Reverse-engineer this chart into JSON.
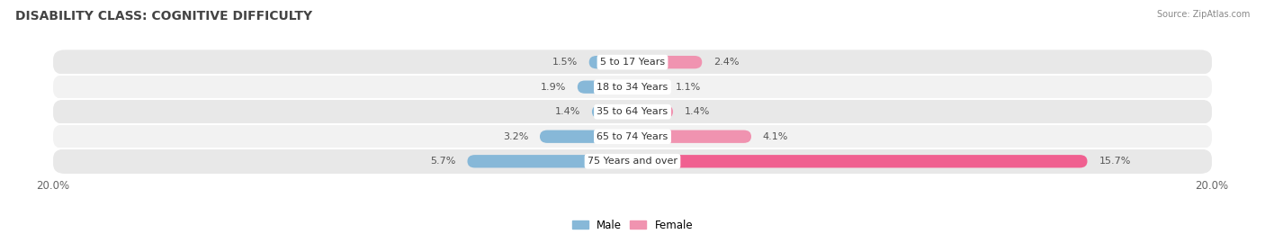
{
  "title": "DISABILITY CLASS: COGNITIVE DIFFICULTY",
  "source": "Source: ZipAtlas.com",
  "categories": [
    "5 to 17 Years",
    "18 to 34 Years",
    "35 to 64 Years",
    "65 to 74 Years",
    "75 Years and over"
  ],
  "male_values": [
    1.5,
    1.9,
    1.4,
    3.2,
    5.7
  ],
  "female_values": [
    2.4,
    1.1,
    1.4,
    4.1,
    15.7
  ],
  "male_color": "#87b8d8",
  "female_color": "#f093b0",
  "female_color_last": "#f06090",
  "axis_max": 20.0,
  "bar_height": 0.52,
  "row_colors": [
    "#e8e8e8",
    "#f2f2f2"
  ],
  "title_fontsize": 10,
  "label_fontsize": 8,
  "value_fontsize": 8,
  "tick_fontsize": 8.5,
  "legend_fontsize": 8.5
}
